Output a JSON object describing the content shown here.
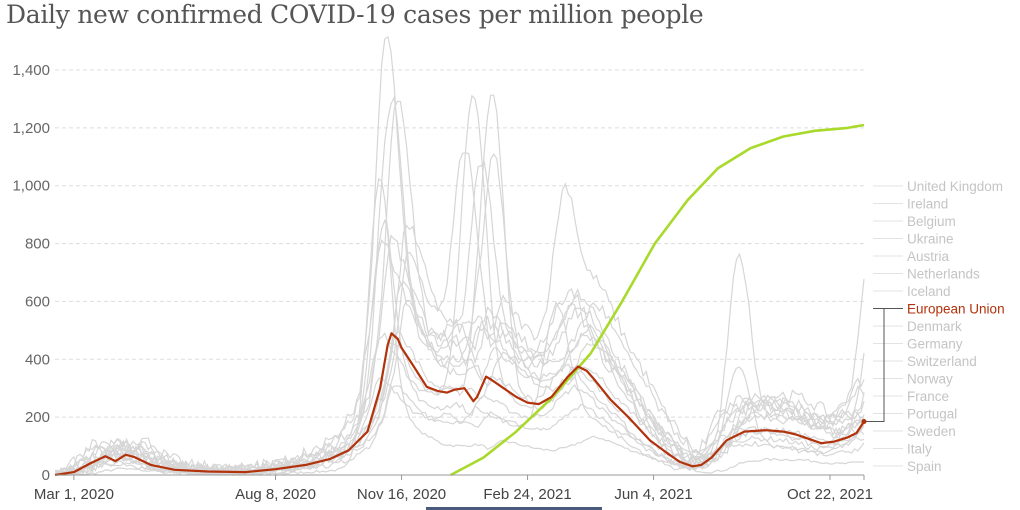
{
  "title": "Daily new confirmed COVID-19 cases per million people",
  "colors": {
    "eu": "#b2320c",
    "trend": "#a8d92b",
    "others": "#d6d6d6",
    "grid": "#dddddd",
    "legend_muted": "#c4c4c4"
  },
  "chart_data": {
    "type": "line",
    "title": "Daily new confirmed COVID-19 cases per million people",
    "xlabel": "",
    "ylabel": "",
    "ylim": [
      0,
      1400
    ],
    "grid": true,
    "legend_placement": "right",
    "x_range": [
      "2020-02-15",
      "2021-12-15"
    ],
    "x_ticks": [
      {
        "date": "2020-03-01",
        "label": "Mar 1, 2020"
      },
      {
        "date": "2020-08-08",
        "label": "Aug 8, 2020"
      },
      {
        "date": "2020-11-16",
        "label": "Nov 16, 2020"
      },
      {
        "date": "2021-02-24",
        "label": "Feb 24, 2021"
      },
      {
        "date": "2021-06-04",
        "label": "Jun 4, 2021"
      },
      {
        "date": "2021-10-22",
        "label": "Oct 22, 2021"
      }
    ],
    "y_ticks": [
      {
        "value": 0,
        "label": "0"
      },
      {
        "value": 200,
        "label": "200"
      },
      {
        "value": 400,
        "label": "400"
      },
      {
        "value": 600,
        "label": "600"
      },
      {
        "value": 800,
        "label": "800"
      },
      {
        "value": 1000,
        "label": "1,000"
      },
      {
        "value": 1200,
        "label": "1,200"
      },
      {
        "value": 1400,
        "label": "1,400"
      }
    ],
    "legend": [
      "United Kingdom",
      "Ireland",
      "Belgium",
      "Ukraine",
      "Austria",
      "Netherlands",
      "Iceland",
      "European Union",
      "Denmark",
      "Germany",
      "Switzerland",
      "Norway",
      "France",
      "Portugal",
      "Sweden",
      "Italy",
      "Spain"
    ],
    "highlighted_series": "European Union",
    "series": [
      {
        "name": "European Union",
        "points": [
          [
            "2020-02-15",
            0
          ],
          [
            "2020-03-01",
            10
          ],
          [
            "2020-03-14",
            40
          ],
          [
            "2020-03-26",
            65
          ],
          [
            "2020-04-03",
            48
          ],
          [
            "2020-04-11",
            70
          ],
          [
            "2020-04-18",
            62
          ],
          [
            "2020-05-01",
            35
          ],
          [
            "2020-05-20",
            18
          ],
          [
            "2020-06-15",
            12
          ],
          [
            "2020-07-15",
            10
          ],
          [
            "2020-08-08",
            20
          ],
          [
            "2020-09-01",
            35
          ],
          [
            "2020-09-20",
            55
          ],
          [
            "2020-10-05",
            85
          ],
          [
            "2020-10-20",
            150
          ],
          [
            "2020-10-30",
            300
          ],
          [
            "2020-11-05",
            450
          ],
          [
            "2020-11-08",
            490
          ],
          [
            "2020-11-13",
            470
          ],
          [
            "2020-11-16",
            440
          ],
          [
            "2020-11-25",
            380
          ],
          [
            "2020-12-06",
            305
          ],
          [
            "2020-12-15",
            290
          ],
          [
            "2020-12-22",
            285
          ],
          [
            "2020-12-28",
            295
          ],
          [
            "2021-01-05",
            300
          ],
          [
            "2021-01-12",
            255
          ],
          [
            "2021-01-15",
            270
          ],
          [
            "2021-01-22",
            340
          ],
          [
            "2021-01-26",
            330
          ],
          [
            "2021-02-05",
            300
          ],
          [
            "2021-02-15",
            270
          ],
          [
            "2021-02-24",
            250
          ],
          [
            "2021-03-05",
            245
          ],
          [
            "2021-03-15",
            270
          ],
          [
            "2021-03-28",
            340
          ],
          [
            "2021-04-05",
            375
          ],
          [
            "2021-04-12",
            360
          ],
          [
            "2021-04-18",
            330
          ],
          [
            "2021-05-01",
            260
          ],
          [
            "2021-05-15",
            200
          ],
          [
            "2021-06-01",
            120
          ],
          [
            "2021-06-15",
            75
          ],
          [
            "2021-06-25",
            45
          ],
          [
            "2021-07-05",
            30
          ],
          [
            "2021-07-12",
            35
          ],
          [
            "2021-07-20",
            60
          ],
          [
            "2021-08-01",
            120
          ],
          [
            "2021-08-15",
            150
          ],
          [
            "2021-09-01",
            155
          ],
          [
            "2021-09-15",
            150
          ],
          [
            "2021-09-25",
            140
          ],
          [
            "2021-10-05",
            125
          ],
          [
            "2021-10-15",
            110
          ],
          [
            "2021-10-25",
            115
          ],
          [
            "2021-11-05",
            130
          ],
          [
            "2021-11-12",
            145
          ],
          [
            "2021-11-18",
            185
          ]
        ]
      }
    ],
    "trend_line": {
      "description_from_picture": "lime S-shaped curve",
      "points": [
        [
          "2020-12-25",
          0
        ],
        [
          "2021-01-20",
          60
        ],
        [
          "2021-02-15",
          150
        ],
        [
          "2021-03-15",
          265
        ],
        [
          "2021-04-15",
          420
        ],
        [
          "2021-05-10",
          600
        ],
        [
          "2021-06-05",
          800
        ],
        [
          "2021-07-01",
          950
        ],
        [
          "2021-07-25",
          1060
        ],
        [
          "2021-08-20",
          1130
        ],
        [
          "2021-09-15",
          1170
        ],
        [
          "2021-10-10",
          1190
        ],
        [
          "2021-11-05",
          1200
        ],
        [
          "2021-11-18",
          1210
        ]
      ]
    },
    "other_series_peaks": [
      {
        "date": "2020-11-03",
        "value": 1520
      },
      {
        "date": "2021-01-12",
        "value": 1310
      },
      {
        "date": "2021-01-25",
        "value": 1270
      },
      {
        "date": "2020-11-06",
        "value": 950
      },
      {
        "date": "2021-03-20",
        "value": 670
      },
      {
        "date": "2021-08-20",
        "value": 700
      },
      {
        "date": "2021-11-18",
        "value": 690
      }
    ]
  }
}
